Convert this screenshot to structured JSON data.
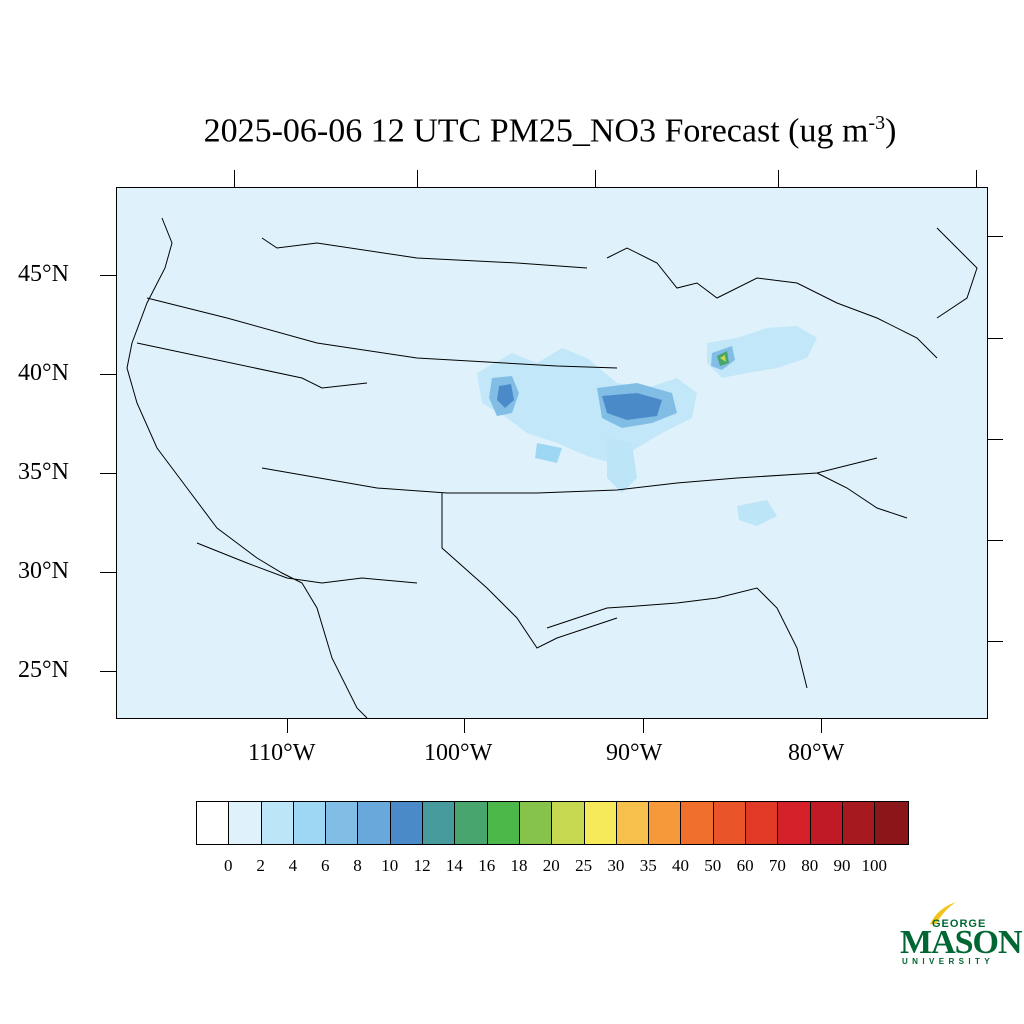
{
  "title": {
    "text": "2025-06-06 12 UTC PM25_NO3 Forecast (ug m",
    "superscript": "-3",
    "close": ")"
  },
  "map": {
    "background_color": "#dff2fb",
    "lat_labels": [
      "45°N",
      "40°N",
      "35°N",
      "30°N",
      "25°N"
    ],
    "lon_labels": [
      "110°W",
      "100°W",
      "90°W",
      "80°W"
    ]
  },
  "colorbar": {
    "colors": [
      "#ffffff",
      "#dff2fb",
      "#bde5f8",
      "#9ed7f3",
      "#82bde6",
      "#68a8db",
      "#4a8ac9",
      "#479b9c",
      "#47a56d",
      "#4cb84a",
      "#86c34b",
      "#c5d84f",
      "#f6e95a",
      "#f7bf4c",
      "#f5993b",
      "#f16f2c",
      "#ea5429",
      "#e03a26",
      "#d42028",
      "#c01b24",
      "#a61a1f",
      "#8b1619"
    ],
    "labels": [
      "0",
      "2",
      "4",
      "6",
      "8",
      "10",
      "12",
      "14",
      "16",
      "18",
      "20",
      "25",
      "30",
      "35",
      "40",
      "50",
      "60",
      "70",
      "80",
      "90",
      "100"
    ]
  },
  "logo": {
    "line1": "GEORGE",
    "line2": "MASON",
    "line3": "UNIVERSITY",
    "color": "#006633",
    "accent_color": "#f0c419"
  }
}
